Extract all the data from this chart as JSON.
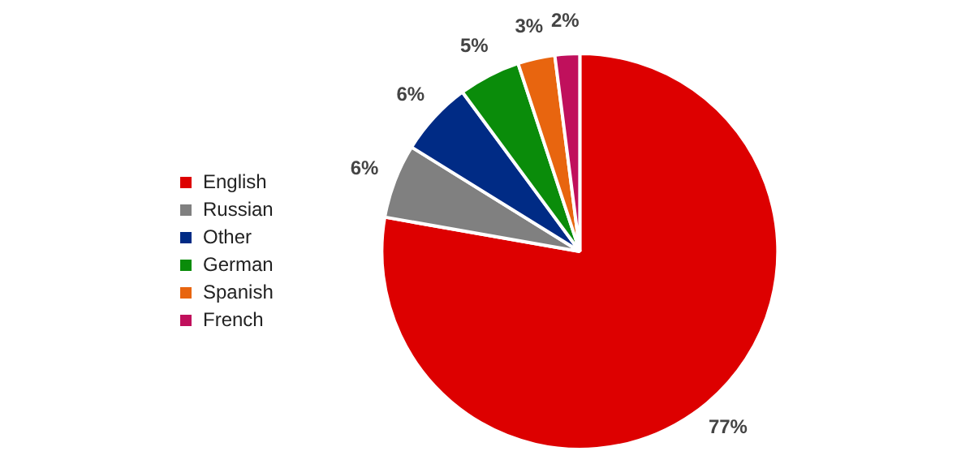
{
  "chart_data": {
    "type": "pie",
    "categories": [
      "English",
      "Russian",
      "Other",
      "German",
      "Spanish",
      "French"
    ],
    "values": [
      77,
      6,
      6,
      5,
      3,
      2
    ],
    "value_labels": [
      "77%",
      "6%",
      "6%",
      "5%",
      "3%",
      "2%"
    ],
    "colors": [
      "#dd0000",
      "#808080",
      "#002b85",
      "#0a8c0a",
      "#e8650f",
      "#c0105c"
    ],
    "legend": "left"
  }
}
